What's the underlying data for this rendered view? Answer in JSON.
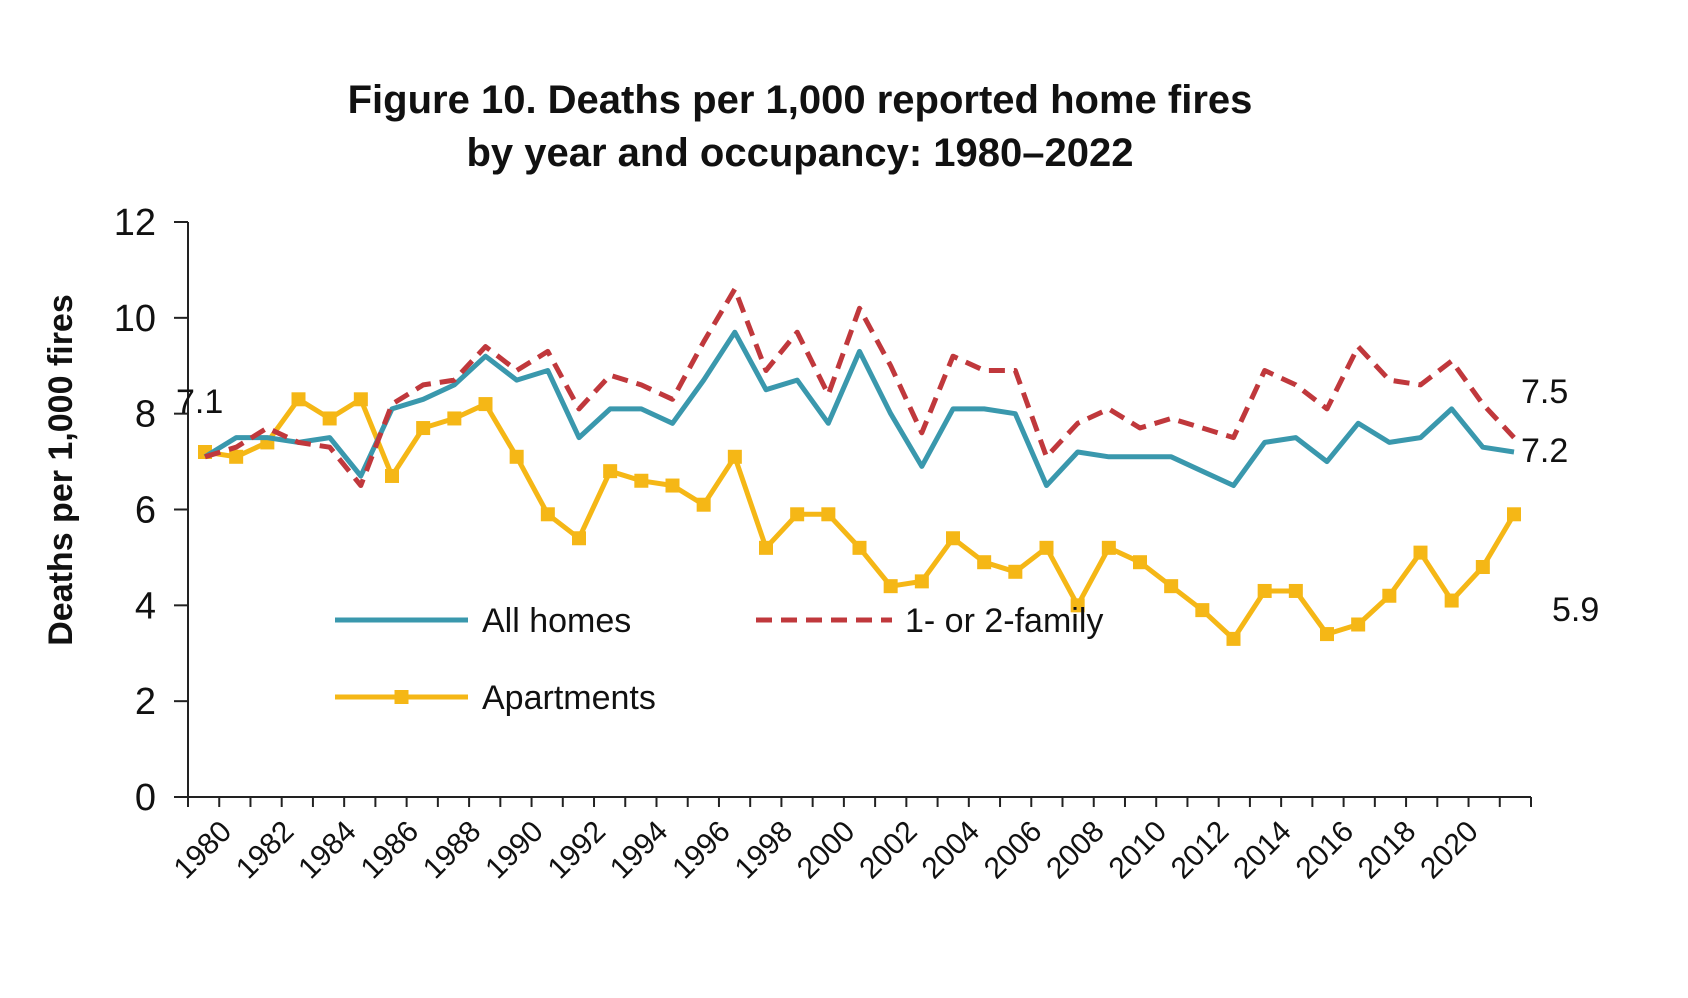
{
  "chart_data": {
    "type": "line",
    "title": "Figure 10. Deaths per 1,000 reported home fires",
    "subtitle": "by year and occupancy: 1980–2022",
    "ylabel": "Deaths per 1,000 fires",
    "xlabel": "",
    "ylim": [
      0,
      12
    ],
    "yticks": [
      "0",
      "2",
      "4",
      "6",
      "8",
      "10",
      "12"
    ],
    "xticks": [
      "1980",
      "1982",
      "1984",
      "1986",
      "1988",
      "1990",
      "1992",
      "1994",
      "1996",
      "1998",
      "2000",
      "2002",
      "2004",
      "2006",
      "2008",
      "2010",
      "2012",
      "2014",
      "2016",
      "2018",
      "2020"
    ],
    "x": [
      1980,
      1981,
      1982,
      1983,
      1984,
      1985,
      1986,
      1987,
      1988,
      1989,
      1990,
      1991,
      1992,
      1993,
      1994,
      1995,
      1996,
      1997,
      1998,
      1999,
      2000,
      2001,
      2002,
      2003,
      2004,
      2005,
      2006,
      2007,
      2008,
      2009,
      2010,
      2011,
      2012,
      2013,
      2014,
      2015,
      2016,
      2017,
      2018,
      2019,
      2020,
      2021,
      2022
    ],
    "grid": false,
    "legend_position": "center-left",
    "series": [
      {
        "name": "All homes",
        "color": "#3a98ad",
        "style": "solid",
        "marker": "none",
        "values": [
          7.1,
          7.5,
          7.5,
          7.4,
          7.5,
          6.7,
          8.1,
          8.3,
          8.6,
          9.2,
          8.7,
          8.9,
          7.5,
          8.1,
          8.1,
          7.8,
          8.7,
          9.7,
          8.5,
          8.7,
          7.8,
          9.3,
          8.0,
          6.9,
          8.1,
          8.1,
          8.0,
          6.5,
          7.2,
          7.1,
          7.1,
          7.1,
          6.8,
          6.5,
          7.4,
          7.5,
          7.0,
          7.8,
          7.4,
          7.5,
          8.1,
          7.3,
          7.2
        ]
      },
      {
        "name": "1- or 2-family",
        "color": "#c0383c",
        "style": "dashed",
        "marker": "none",
        "values": [
          7.1,
          7.3,
          7.7,
          7.4,
          7.3,
          6.5,
          8.2,
          8.6,
          8.7,
          9.4,
          8.9,
          9.3,
          8.1,
          8.8,
          8.6,
          8.3,
          9.5,
          10.6,
          8.9,
          9.7,
          8.4,
          10.2,
          9.0,
          7.6,
          9.2,
          8.9,
          8.9,
          7.1,
          7.8,
          8.1,
          7.7,
          7.9,
          7.7,
          7.5,
          8.9,
          8.6,
          8.1,
          9.4,
          8.7,
          8.6,
          9.1,
          8.2,
          7.5
        ]
      },
      {
        "name": "Apartments",
        "color": "#f5b716",
        "style": "solid",
        "marker": "square",
        "values": [
          7.2,
          7.1,
          7.4,
          8.3,
          7.9,
          8.3,
          6.7,
          7.7,
          7.9,
          8.2,
          7.1,
          5.9,
          5.4,
          6.8,
          6.6,
          6.5,
          6.1,
          7.1,
          5.2,
          5.9,
          5.9,
          5.2,
          4.4,
          4.5,
          5.4,
          4.9,
          4.7,
          5.2,
          4.0,
          5.2,
          4.9,
          4.4,
          3.9,
          3.3,
          4.3,
          4.3,
          3.4,
          3.6,
          4.2,
          5.1,
          4.1,
          4.8,
          5.9
        ]
      }
    ],
    "annotations": [
      {
        "text": "7.1",
        "series": "All homes",
        "at": "start"
      },
      {
        "text": "7.5",
        "series": "1- or 2-family",
        "at": "end"
      },
      {
        "text": "7.2",
        "series": "All homes",
        "at": "end"
      },
      {
        "text": "5.9",
        "series": "Apartments",
        "at": "end"
      }
    ]
  }
}
